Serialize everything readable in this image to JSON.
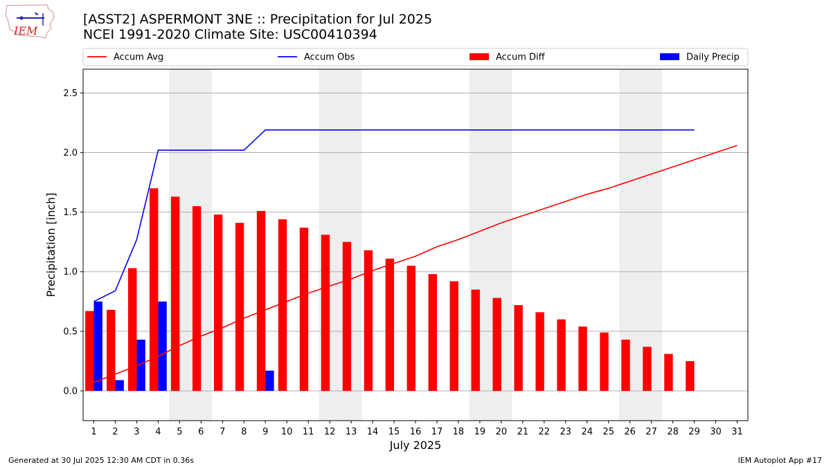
{
  "header": {
    "title_line1": "[ASST2] ASPERMONT 3NE :: Precipitation for Jul 2025",
    "title_line2": "NCEI 1991-2020 Climate Site: USC00410394",
    "logo_text": "IEM"
  },
  "footer": {
    "generated": "Generated at 30 Jul 2025 12:30 AM CDT in 0.36s",
    "app": "IEM Autoplot App #17"
  },
  "colors": {
    "avg": "#ff0000",
    "obs": "#0000ff",
    "diff": "#ff0000",
    "daily": "#0000ff",
    "weekend": "#eeeeee",
    "grid": "#b0b0b0"
  },
  "chart_data": {
    "type": "bar",
    "xlabel": "July 2025",
    "ylabel": "Precipitation [inch]",
    "xlim": [
      0.5,
      31.5
    ],
    "ylim": [
      -0.25,
      2.7
    ],
    "yticks": [
      0.0,
      0.5,
      1.0,
      1.5,
      2.0,
      2.5
    ],
    "ytick_labels": [
      "0.0",
      "0.5",
      "1.0",
      "1.5",
      "2.0",
      "2.5"
    ],
    "grid": "y",
    "legend_position": "top",
    "days": [
      1,
      2,
      3,
      4,
      5,
      6,
      7,
      8,
      9,
      10,
      11,
      12,
      13,
      14,
      15,
      16,
      17,
      18,
      19,
      20,
      21,
      22,
      23,
      24,
      25,
      26,
      27,
      28,
      29,
      30,
      31
    ],
    "weekend_spans": [
      [
        5,
        6
      ],
      [
        12,
        13
      ],
      [
        19,
        20
      ],
      [
        26,
        27
      ]
    ],
    "series": [
      {
        "name": "Accum Avg",
        "kind": "line",
        "values": [
          0.07,
          0.14,
          0.21,
          0.29,
          0.38,
          0.46,
          0.53,
          0.61,
          0.68,
          0.75,
          0.82,
          0.88,
          0.94,
          1.01,
          1.07,
          1.13,
          1.21,
          1.27,
          1.34,
          1.41,
          1.47,
          1.53,
          1.59,
          1.65,
          1.7,
          1.76,
          1.82,
          1.88,
          1.94,
          2.0,
          2.06
        ]
      },
      {
        "name": "Accum Obs",
        "kind": "line",
        "values": [
          0.75,
          0.84,
          1.27,
          2.02,
          2.02,
          2.02,
          2.02,
          2.02,
          2.19,
          2.19,
          2.19,
          2.19,
          2.19,
          2.19,
          2.19,
          2.19,
          2.19,
          2.19,
          2.19,
          2.19,
          2.19,
          2.19,
          2.19,
          2.19,
          2.19,
          2.19,
          2.19,
          2.19,
          2.19
        ]
      },
      {
        "name": "Accum Diff",
        "kind": "bar",
        "values": [
          0.67,
          0.68,
          1.03,
          1.7,
          1.63,
          1.55,
          1.48,
          1.41,
          1.51,
          1.44,
          1.37,
          1.31,
          1.25,
          1.18,
          1.11,
          1.05,
          0.98,
          0.92,
          0.85,
          0.78,
          0.72,
          0.66,
          0.6,
          0.54,
          0.49,
          0.43,
          0.37,
          0.31,
          0.25
        ]
      },
      {
        "name": "Daily Precip",
        "kind": "bar",
        "values": [
          0.75,
          0.09,
          0.43,
          0.75,
          0,
          0,
          0,
          0,
          0.17,
          0,
          0,
          0,
          0,
          0,
          0,
          0,
          0,
          0,
          0,
          0,
          0,
          0,
          0,
          0,
          0,
          0,
          0,
          0,
          0
        ]
      }
    ]
  }
}
